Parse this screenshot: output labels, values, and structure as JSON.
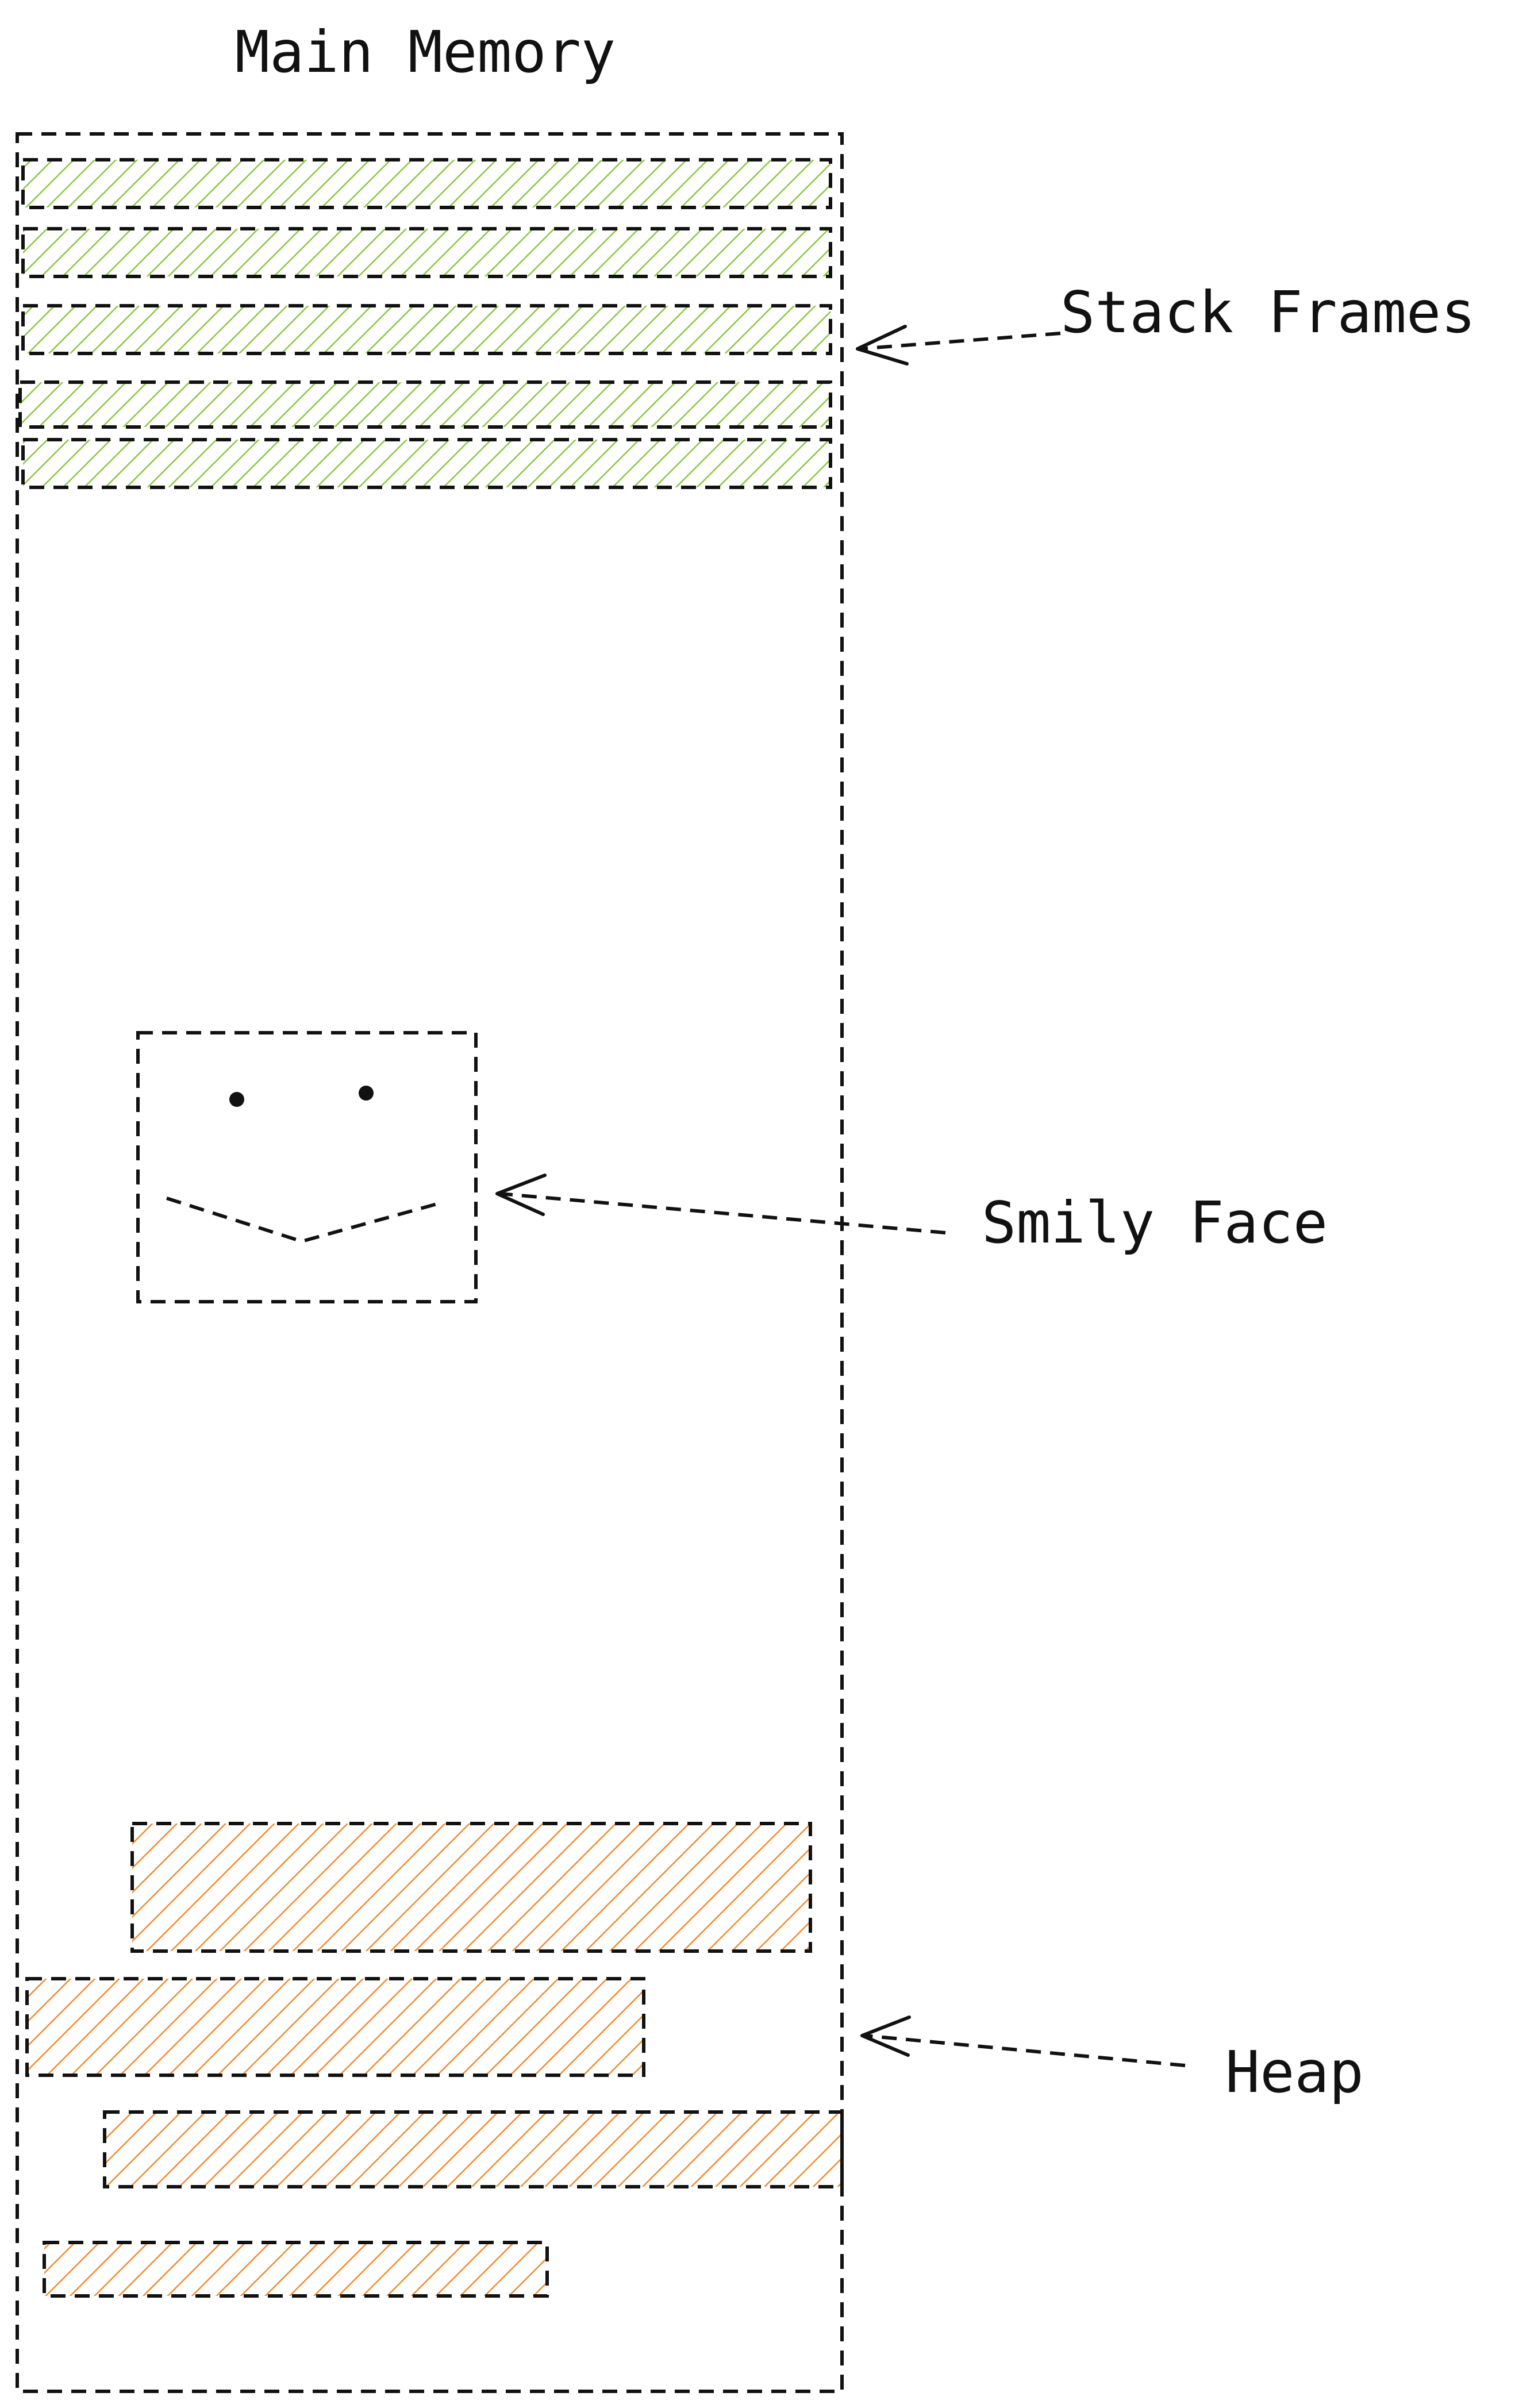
{
  "title": "Main Memory",
  "regions": {
    "stack": {
      "label": "Stack Frames",
      "frame_count": 5,
      "fill_color": "#8cc63f"
    },
    "smiley": {
      "label": "Smily Face"
    },
    "heap": {
      "label": "Heap",
      "block_count": 4,
      "fill_color": "#f28a2e"
    }
  },
  "colors": {
    "stroke": "#111111",
    "background": "#ffffff"
  }
}
